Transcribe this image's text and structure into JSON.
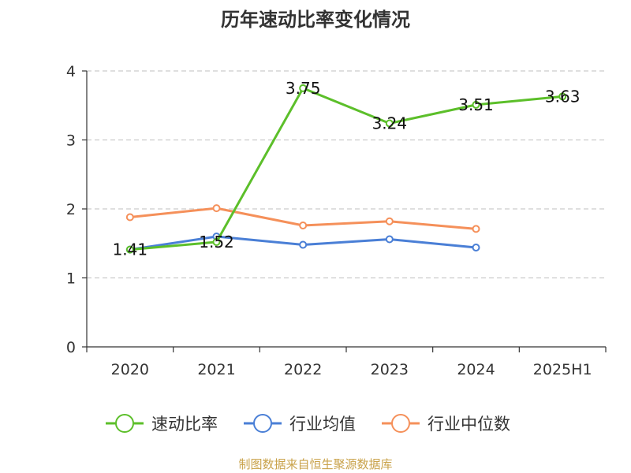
{
  "chart_data": {
    "type": "line",
    "title": "历年速动比率变化情况",
    "categories": [
      "2020",
      "2021",
      "2022",
      "2023",
      "2024",
      "2025H1"
    ],
    "ylim": [
      0,
      4
    ],
    "yticks": [
      "0",
      "1",
      "2",
      "3",
      "4"
    ],
    "grid": true,
    "legend_position": "bottom",
    "series": [
      {
        "name": "速动比率",
        "color": "#5cbf2a",
        "values": [
          1.41,
          1.52,
          3.75,
          3.24,
          3.51,
          3.63
        ],
        "labels": [
          "1.41",
          "1.52",
          "3.75",
          "3.24",
          "3.51",
          "3.63"
        ],
        "show_labels": true
      },
      {
        "name": "行业均值",
        "color": "#4a7fd6",
        "values": [
          1.41,
          1.6,
          1.48,
          1.56,
          1.44,
          null
        ],
        "show_labels": false
      },
      {
        "name": "行业中位数",
        "color": "#f5905a",
        "values": [
          1.88,
          2.01,
          1.76,
          1.82,
          1.71,
          null
        ],
        "show_labels": false
      }
    ],
    "source": "制图数据来自恒生聚源数据库"
  }
}
